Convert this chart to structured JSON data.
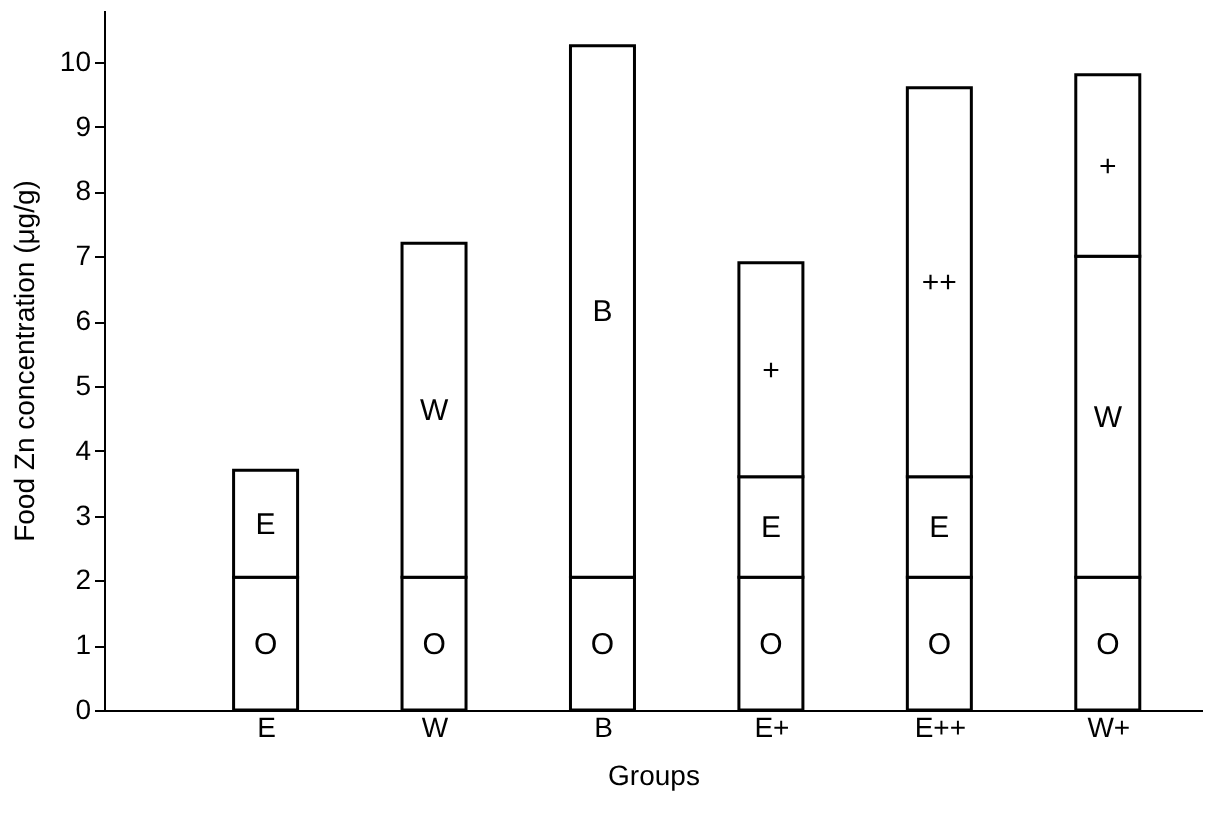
{
  "chart_data": {
    "type": "bar",
    "stacked": true,
    "xlabel": "Groups",
    "ylabel": "Food Zn concentration (μg/g)",
    "categories": [
      "E",
      "W",
      "B",
      "E+",
      "E++",
      "W+"
    ],
    "series": [
      {
        "name": "O",
        "color": "#ffffff",
        "values": [
          2.05,
          2.05,
          2.05,
          2.05,
          2.05,
          2.05
        ]
      },
      {
        "name": "E",
        "color": "#ffffff",
        "values": [
          1.65,
          null,
          null,
          1.55,
          1.55,
          null
        ]
      },
      {
        "name": "W",
        "color": "#ffffff",
        "values": [
          null,
          5.15,
          null,
          null,
          null,
          4.95
        ]
      },
      {
        "name": "B",
        "color": "#ffffff",
        "values": [
          null,
          null,
          8.2,
          null,
          null,
          null
        ]
      },
      {
        "name": "+",
        "color": "#ffffff",
        "values": [
          null,
          null,
          null,
          3.3,
          null,
          2.8
        ]
      },
      {
        "name": "++",
        "color": "#ffffff",
        "values": [
          null,
          null,
          null,
          null,
          6.0,
          null
        ]
      }
    ],
    "ylim": [
      0,
      10.8
    ],
    "yticks": [
      0,
      1,
      2,
      3,
      4,
      5,
      6,
      7,
      8,
      9,
      10
    ],
    "grid": false
  }
}
